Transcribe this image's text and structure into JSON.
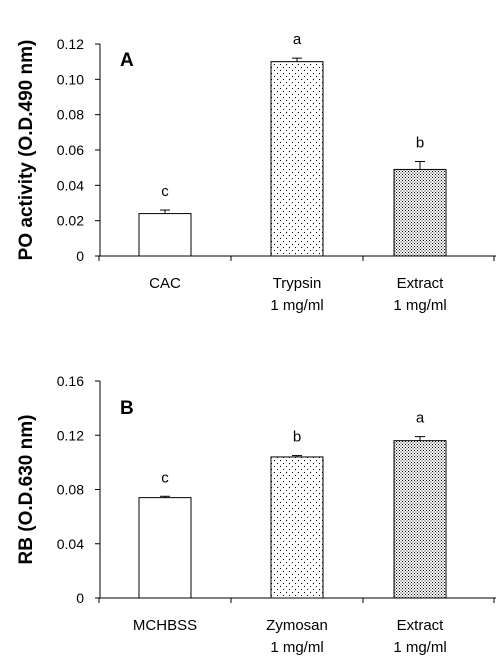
{
  "chart_data": [
    {
      "type": "bar",
      "panel_label": "A",
      "title": "",
      "xlabel": "",
      "ylabel": "PO activity (O.D.490 nm)",
      "ylim": [
        0,
        0.12
      ],
      "yticks": [
        "0",
        "0.02",
        "0.04",
        "0.06",
        "0.08",
        "0.10",
        "0.12"
      ],
      "yticks_values": [
        0,
        0.02,
        0.04,
        0.06,
        0.08,
        0.1,
        0.12
      ],
      "categories": [
        [
          "CAC"
        ],
        [
          "Trypsin",
          "1 mg/ml"
        ],
        [
          "Extract",
          "1 mg/ml"
        ]
      ],
      "values": [
        0.024,
        0.11,
        0.049
      ],
      "errors": [
        0.002,
        0.002,
        0.0045
      ],
      "significance": [
        "c",
        "a",
        "b"
      ],
      "fills": [
        "empty",
        "sparse-dots",
        "dense-dots"
      ],
      "grid": false
    },
    {
      "type": "bar",
      "panel_label": "B",
      "title": "",
      "xlabel": "",
      "ylabel": "RB (O.D.630 nm)",
      "ylim": [
        0,
        0.16
      ],
      "yticks": [
        "0",
        "0.04",
        "0.08",
        "0.12",
        "0.16"
      ],
      "yticks_values": [
        0,
        0.04,
        0.08,
        0.12,
        0.16
      ],
      "categories": [
        [
          "MCHBSS"
        ],
        [
          "Zymosan",
          "1 mg/ml"
        ],
        [
          "Extract",
          "1 mg/ml"
        ]
      ],
      "values": [
        0.074,
        0.104,
        0.116
      ],
      "errors": [
        0.001,
        0.001,
        0.003
      ],
      "significance": [
        "c",
        "b",
        "a"
      ],
      "fills": [
        "empty",
        "sparse-dots",
        "dense-dots"
      ],
      "grid": false
    }
  ]
}
